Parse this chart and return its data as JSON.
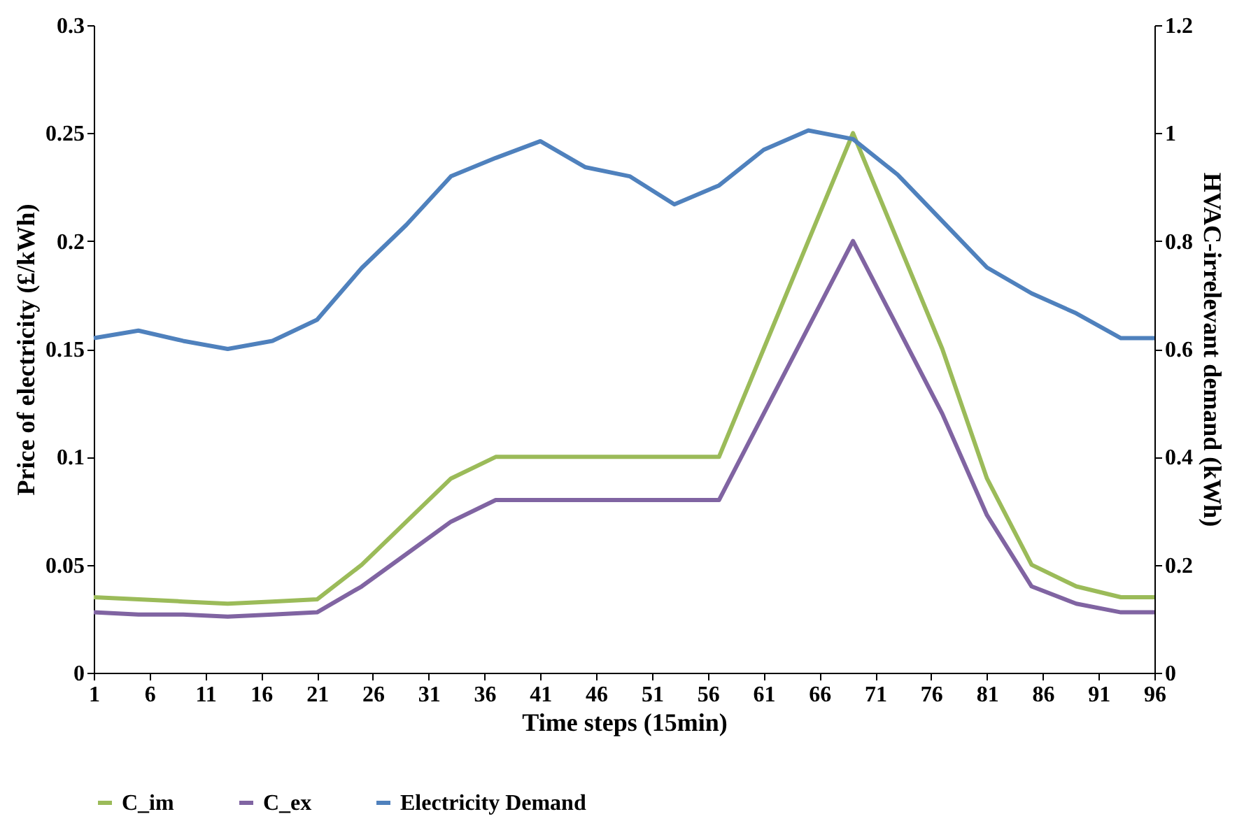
{
  "chart_data": {
    "type": "line",
    "xlabel": "Time steps (15min)",
    "ylabel": "Price of electricity (£/kWh)",
    "y2label": "HVAC-irrelevant demand (kWh)",
    "x": [
      1,
      5,
      9,
      13,
      17,
      21,
      25,
      29,
      33,
      37,
      41,
      45,
      49,
      53,
      57,
      61,
      65,
      69,
      73,
      77,
      81,
      85,
      89,
      93,
      96
    ],
    "series": [
      {
        "name": "C_im",
        "color": "#9bbb59",
        "values": [
          0.035,
          0.034,
          0.033,
          0.032,
          0.033,
          0.034,
          0.05,
          0.07,
          0.09,
          0.1,
          0.1,
          0.1,
          0.1,
          0.1,
          0.1,
          0.15,
          0.2,
          0.25,
          0.2,
          0.15,
          0.09,
          0.05,
          0.04,
          0.035,
          0.035
        ]
      },
      {
        "name": "C_ex",
        "color": "#8064a2",
        "values": [
          0.028,
          0.027,
          0.027,
          0.026,
          0.027,
          0.028,
          0.04,
          0.055,
          0.07,
          0.08,
          0.08,
          0.08,
          0.08,
          0.08,
          0.08,
          0.12,
          0.16,
          0.2,
          0.16,
          0.12,
          0.073,
          0.04,
          0.032,
          0.028,
          0.028
        ]
      },
      {
        "name": "Electricity Demand",
        "color": "#4f81bd",
        "axis": "y2",
        "values": [
          0.62,
          0.634,
          0.615,
          0.6,
          0.615,
          0.654,
          0.75,
          0.83,
          0.92,
          0.954,
          0.985,
          0.937,
          0.92,
          0.868,
          0.903,
          0.969,
          1.005,
          0.989,
          0.923,
          0.837,
          0.751,
          0.703,
          0.666,
          0.62,
          0.62
        ]
      }
    ],
    "xlim": [
      1,
      96
    ],
    "xticks": [
      1,
      6,
      11,
      16,
      21,
      26,
      31,
      36,
      41,
      46,
      51,
      56,
      61,
      66,
      71,
      76,
      81,
      86,
      91,
      96
    ],
    "ylim": [
      0,
      0.3
    ],
    "yticks": [
      0,
      0.05,
      0.1,
      0.15,
      0.2,
      0.25,
      0.3
    ],
    "y2lim": [
      0,
      1.2
    ],
    "y2ticks": [
      0,
      0.2,
      0.4,
      0.6,
      0.8,
      1,
      1.2
    ],
    "grid": false,
    "legend": "bottom",
    "marker": "none",
    "line_style": "solid"
  }
}
